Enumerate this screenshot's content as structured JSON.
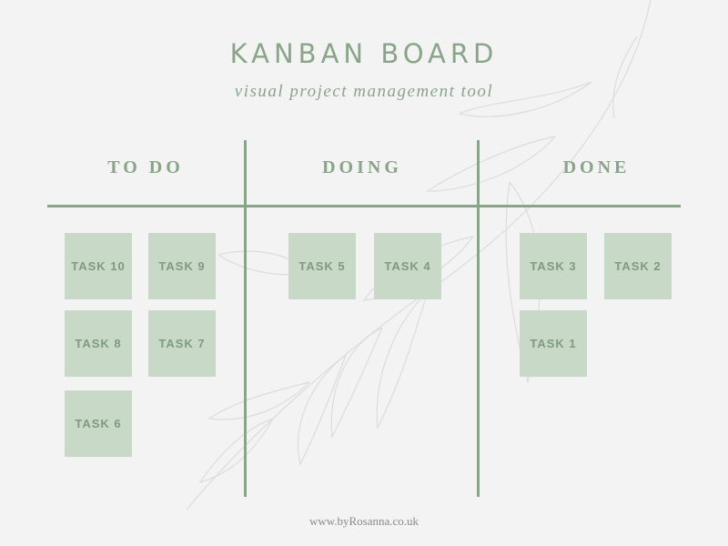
{
  "header": {
    "title": "KANBAN BOARD",
    "subtitle": "visual project management tool"
  },
  "board": {
    "columns": [
      {
        "name": "TO DO",
        "tasks": [
          "TASK 10",
          "TASK 9",
          "TASK 8",
          "TASK 7",
          "TASK 6"
        ]
      },
      {
        "name": "DOING",
        "tasks": [
          "TASK 5",
          "TASK 4"
        ]
      },
      {
        "name": "DONE",
        "tasks": [
          "TASK 3",
          "TASK 2",
          "TASK 1"
        ]
      }
    ]
  },
  "footer": {
    "text": "www.byRosanna.co.uk"
  },
  "colors": {
    "accent": "#8aa48a",
    "card": "#c8d9c7",
    "card_text": "#7f9a80",
    "background": "#f3f3f3"
  }
}
